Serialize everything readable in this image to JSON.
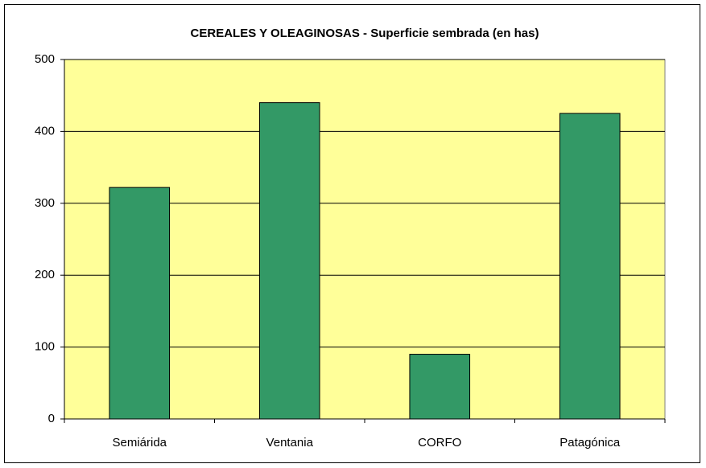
{
  "chart_data": {
    "type": "bar",
    "title": "CEREALES Y OLEAGINOSAS - Superficie sembrada (en has)",
    "categories": [
      "Semiárida",
      "Ventania",
      "CORFO",
      "Patagónica"
    ],
    "values": [
      322,
      440,
      90,
      425
    ],
    "color": "#339966",
    "ylim": [
      0,
      500
    ],
    "yticks": [
      0,
      100,
      200,
      300,
      400,
      500
    ],
    "grid": true
  }
}
